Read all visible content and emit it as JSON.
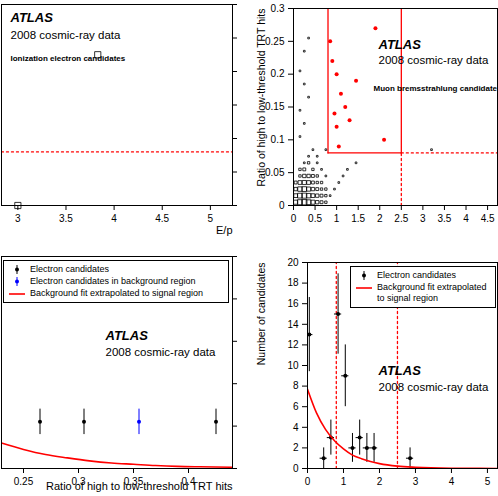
{
  "chart_data": [
    {
      "type": "scatter",
      "annotations": [
        "ATLAS",
        "2008 cosmic-ray data",
        "Ionization electron candidates"
      ],
      "xlabel": "E/p",
      "ylabel": null,
      "xlim": [
        2.83,
        5.23
      ],
      "ylim": [
        0,
        0.3
      ],
      "xticks": [
        3,
        3.5,
        4,
        4.5,
        5
      ],
      "yticks": [
        0,
        0.05,
        0.1,
        0.15,
        0.2,
        0.25,
        0.3
      ],
      "tick_labels": "x",
      "series": [
        {
          "color": "#000000",
          "marker": "square",
          "x": [
            3.83,
            3.0
          ],
          "y": [
            0.225,
            0.0
          ]
        }
      ],
      "lines": [
        {
          "x": [
            2.83,
            5.23
          ],
          "y": [
            0.08,
            0.08
          ],
          "color": "#ff0000",
          "line_style": "dotted"
        }
      ]
    },
    {
      "type": "scatter",
      "annotations": [
        "ATLAS",
        "2008 cosmic-ray data",
        "Muon bremsstrahlung candidates"
      ],
      "xlabel": null,
      "ylabel": "Ratio of high to low-threshold TRT hits",
      "xlim": [
        0,
        4.73
      ],
      "ylim": [
        0,
        0.3
      ],
      "xticks": [
        0,
        0.5,
        1,
        1.5,
        2,
        2.5,
        3,
        3.5,
        4,
        4.5
      ],
      "yticks": [
        0,
        0.05,
        0.1,
        0.15,
        0.2,
        0.25,
        0.3
      ],
      "series": [
        {
          "color": "#000000",
          "marker": "square",
          "x": [
            0.05,
            0.15,
            0.25,
            0.35,
            0.45,
            0.55,
            0.65,
            0.75,
            0.05,
            0.15,
            0.25,
            0.35,
            0.45,
            0.55,
            0.65,
            0.75,
            0.85,
            0.05,
            0.15,
            0.25,
            0.35,
            0.45,
            0.55,
            0.65,
            0.75,
            0.95,
            0.05,
            0.15,
            0.25,
            0.35,
            0.45,
            0.55,
            0.65,
            1.05,
            0.15,
            0.25,
            0.35,
            0.45,
            0.55,
            0.75,
            1.15,
            0.15,
            0.25,
            0.45,
            0.65,
            1.25,
            0.25,
            0.35,
            0.55,
            1.45,
            0.35,
            0.55,
            0.45,
            0.75,
            0.15,
            0.25,
            0.15,
            0.35,
            0.25,
            0.15,
            0.25,
            0.35,
            3.2
          ],
          "y": [
            0.005,
            0.005,
            0.005,
            0.005,
            0.005,
            0.005,
            0.005,
            0.005,
            0.015,
            0.015,
            0.015,
            0.015,
            0.015,
            0.015,
            0.015,
            0.015,
            0.015,
            0.025,
            0.025,
            0.025,
            0.025,
            0.025,
            0.025,
            0.025,
            0.025,
            0.025,
            0.035,
            0.035,
            0.035,
            0.035,
            0.035,
            0.035,
            0.035,
            0.035,
            0.045,
            0.045,
            0.045,
            0.045,
            0.045,
            0.045,
            0.045,
            0.055,
            0.055,
            0.055,
            0.055,
            0.055,
            0.065,
            0.065,
            0.065,
            0.065,
            0.075,
            0.075,
            0.085,
            0.085,
            0.105,
            0.125,
            0.145,
            0.165,
            0.185,
            0.205,
            0.235,
            0.255,
            0.085
          ],
          "sizes": [
            6,
            9,
            10,
            8,
            6,
            4,
            3,
            2,
            5,
            8,
            9,
            7,
            5,
            4,
            3,
            2,
            1,
            4,
            7,
            8,
            6,
            4,
            3,
            2,
            2,
            1,
            3,
            5,
            6,
            5,
            3,
            2,
            2,
            1,
            2,
            4,
            4,
            3,
            2,
            1,
            1,
            2,
            3,
            2,
            1,
            1,
            1,
            2,
            1,
            1,
            1,
            1,
            1,
            1,
            1,
            1,
            1,
            1,
            1,
            1,
            1,
            1,
            1
          ]
        },
        {
          "color": "#ff0000",
          "marker": "dot",
          "x": [
            0.85,
            0.9,
            1.0,
            1.05,
            1.1,
            1.2,
            1.3,
            1.45,
            1.9,
            2.1,
            1.0,
            0.95
          ],
          "y": [
            0.25,
            0.22,
            0.2,
            0.09,
            0.17,
            0.15,
            0.13,
            0.19,
            0.27,
            0.1,
            0.12,
            0.14
          ]
        }
      ],
      "lines": [
        {
          "x": [
            0.8,
            0.8
          ],
          "y": [
            0.08,
            0.3
          ],
          "color": "#ff0000",
          "line_style": "solid"
        },
        {
          "x": [
            2.5,
            2.5
          ],
          "y": [
            0.08,
            0.3
          ],
          "color": "#ff0000",
          "line_style": "solid"
        },
        {
          "x": [
            0.8,
            2.5
          ],
          "y": [
            0.08,
            0.08
          ],
          "color": "#ff0000",
          "line_style": "solid"
        },
        {
          "x": [
            2.5,
            4.73
          ],
          "y": [
            0.08,
            0.08
          ],
          "color": "#ff0000",
          "line_style": "dotted"
        },
        {
          "x": [
            2.5,
            2.5
          ],
          "y": [
            0,
            0.08
          ],
          "color": "#ff0000",
          "line_style": "dotted"
        }
      ]
    },
    {
      "type": "scatter",
      "annotations": [
        "ATLAS",
        "2008 cosmic-ray data"
      ],
      "xlabel": "Ratio of high to low-threshold TRT hits",
      "ylabel": null,
      "xlim": [
        0.23,
        0.44
      ],
      "ylim": [
        0,
        5
      ],
      "xticks": [
        0.25,
        0.3,
        0.35,
        0.4
      ],
      "yticks": [
        0,
        1,
        2,
        3,
        4,
        5
      ],
      "tick_labels": "x",
      "legend": "top-left",
      "series": [
        {
          "name": "Electron candidates",
          "color": "#000000",
          "marker": "dot",
          "x": [
            0.265,
            0.305,
            0.425
          ],
          "y": [
            1.1,
            1.1,
            1.1
          ],
          "yerr": [
            0.3,
            0.3,
            0.3
          ]
        },
        {
          "name": "Electron candidates in background region",
          "color": "#0000ff",
          "marker": "dot",
          "x": [
            0.355
          ],
          "y": [
            1.1
          ],
          "yerr": [
            0.3
          ]
        },
        {
          "name": "Background fit extrapolated to signal region",
          "type": "line",
          "color": "#ff0000",
          "line_style": "solid",
          "x": [
            0.23,
            0.25,
            0.27,
            0.29,
            0.31,
            0.33,
            0.35,
            0.37,
            0.39,
            0.41,
            0.44
          ],
          "y": [
            0.6,
            0.45,
            0.33,
            0.25,
            0.18,
            0.13,
            0.1,
            0.07,
            0.05,
            0.04,
            0.03
          ]
        }
      ],
      "lines": []
    },
    {
      "type": "scatter",
      "annotations": [
        "ATLAS",
        "2008 cosmic-ray data"
      ],
      "xlabel": null,
      "ylabel": "Number of candidates",
      "xlim": [
        0,
        5.28
      ],
      "ylim": [
        0,
        20
      ],
      "xticks": [
        0,
        1,
        2,
        3,
        4,
        5
      ],
      "yticks": [
        0,
        2,
        4,
        6,
        8,
        10,
        12,
        14,
        16,
        18,
        20
      ],
      "legend": "top-right",
      "series": [
        {
          "name": "Electron candidates",
          "color": "#000000",
          "marker": "dot",
          "x": [
            0.05,
            0.45,
            0.65,
            0.85,
            1.05,
            1.25,
            1.45,
            1.65,
            1.85,
            2.85
          ],
          "y": [
            13,
            1,
            3,
            15,
            9,
            2,
            3,
            2,
            2,
            1
          ],
          "yerr": [
            3.6,
            1,
            1.7,
            3.9,
            3,
            1.4,
            1.7,
            1.4,
            1.4,
            1
          ],
          "xerr": [
            0.1,
            0.1,
            0.1,
            0.1,
            0.1,
            0.1,
            0.1,
            0.1,
            0.1,
            0.1
          ]
        },
        {
          "name": "Background fit extrapolated to signal region",
          "type": "line",
          "color": "#ff0000",
          "line_style": "solid",
          "x": [
            0,
            0.25,
            0.5,
            0.75,
            1,
            1.25,
            1.5,
            1.75,
            2,
            2.5,
            3,
            4,
            5.28
          ],
          "y": [
            7.7,
            5.4,
            3.8,
            2.7,
            1.9,
            1.3,
            0.95,
            0.67,
            0.47,
            0.23,
            0.12,
            0.03,
            0.005
          ]
        }
      ],
      "lines": [
        {
          "x": [
            0.8,
            0.8
          ],
          "y": [
            0,
            20
          ],
          "color": "#ff0000",
          "line_style": "dotted"
        },
        {
          "x": [
            2.5,
            2.5
          ],
          "y": [
            0,
            20
          ],
          "color": "#ff0000",
          "line_style": "dotted"
        }
      ]
    }
  ]
}
